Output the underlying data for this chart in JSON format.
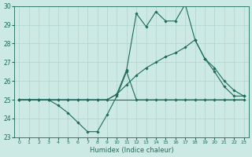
{
  "xlabel": "Humidex (Indice chaleur)",
  "xlim": [
    -0.5,
    23.5
  ],
  "ylim": [
    23,
    30
  ],
  "yticks": [
    23,
    24,
    25,
    26,
    27,
    28,
    29,
    30
  ],
  "xticks": [
    0,
    1,
    2,
    3,
    4,
    5,
    6,
    7,
    8,
    9,
    10,
    11,
    12,
    13,
    14,
    15,
    16,
    17,
    18,
    19,
    20,
    21,
    22,
    23
  ],
  "background_color": "#cce9e4",
  "grid_color": "#aed4ce",
  "line_color": "#1c6b5c",
  "series": {
    "line_min": {
      "x": [
        0,
        1,
        2,
        3,
        4,
        5,
        6,
        7,
        8,
        9,
        10,
        11,
        12,
        13,
        14,
        15,
        16,
        17,
        18,
        19,
        20,
        21,
        22,
        23
      ],
      "y": [
        25,
        25,
        25,
        25,
        24.7,
        24.3,
        23.8,
        23.3,
        23.3,
        24.2,
        25.2,
        26.5,
        25,
        25,
        25,
        25,
        25,
        25,
        25,
        25,
        25,
        25,
        25,
        25
      ],
      "has_markers": true
    },
    "line_max": {
      "x": [
        0,
        1,
        2,
        3,
        4,
        5,
        6,
        7,
        8,
        9,
        10,
        11,
        12,
        13,
        14,
        15,
        16,
        17,
        18,
        19,
        20,
        21,
        22,
        23
      ],
      "y": [
        25,
        25,
        25,
        25,
        25,
        25,
        25,
        25,
        25,
        25,
        25.3,
        26.6,
        29.6,
        28.9,
        29.7,
        29.2,
        29.2,
        30.1,
        28.2,
        27.2,
        26.5,
        25.7,
        25.2,
        25.2
      ],
      "has_markers": true
    },
    "line_flat": {
      "x": [
        0,
        1,
        2,
        3,
        4,
        5,
        6,
        7,
        8,
        9,
        10,
        11,
        12,
        13,
        14,
        15,
        16,
        17,
        18,
        19,
        20,
        21,
        22,
        23
      ],
      "y": [
        25,
        25,
        25,
        25,
        25,
        25,
        25,
        25,
        25,
        25,
        25,
        25,
        25,
        25,
        25,
        25,
        25,
        25,
        25,
        25,
        25,
        25,
        25,
        25
      ],
      "has_markers": false
    },
    "line_mean": {
      "x": [
        0,
        1,
        2,
        3,
        4,
        5,
        6,
        7,
        8,
        9,
        10,
        11,
        12,
        13,
        14,
        15,
        16,
        17,
        18,
        19,
        20,
        21,
        22,
        23
      ],
      "y": [
        25,
        25,
        25,
        25,
        25,
        25,
        25,
        25,
        25,
        25,
        25.3,
        25.8,
        26.3,
        26.7,
        27.0,
        27.3,
        27.5,
        27.8,
        28.2,
        27.2,
        26.7,
        26.0,
        25.5,
        25.2
      ],
      "has_markers": true
    }
  }
}
